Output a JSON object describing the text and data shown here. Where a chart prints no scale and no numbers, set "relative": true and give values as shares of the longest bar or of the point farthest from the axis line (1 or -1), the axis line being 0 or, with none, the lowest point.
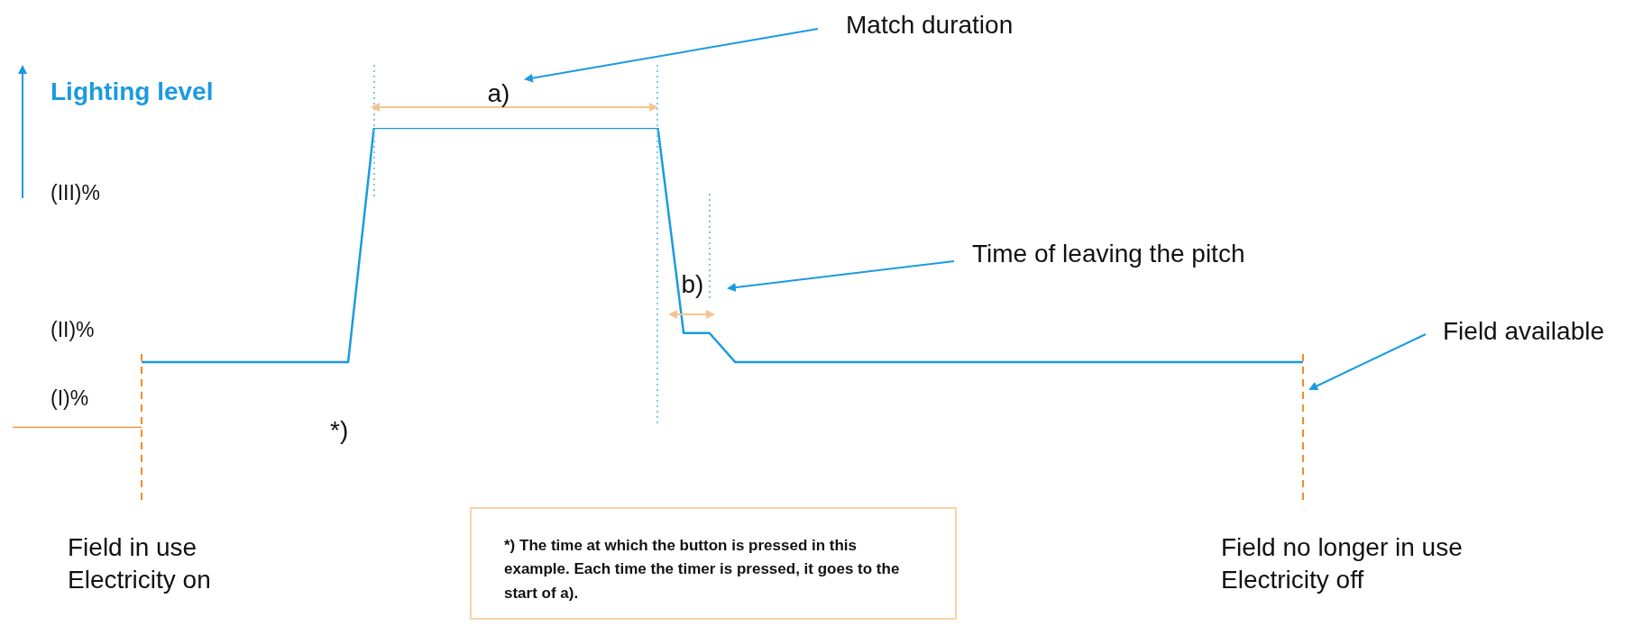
{
  "chart_data": {
    "type": "line",
    "relative": true,
    "ylabel": "Lighting level",
    "categories": [
      null,
      null,
      null,
      null,
      null,
      null,
      null,
      null,
      null,
      null,
      null,
      null,
      null,
      null,
      null,
      null,
      null,
      null,
      null,
      null,
      null,
      null,
      null,
      null,
      null,
      null,
      null,
      null,
      null,
      null,
      null,
      null,
      null,
      null,
      null,
      null,
      null,
      null,
      null,
      null,
      null,
      null,
      null,
      null,
      null,
      null,
      null,
      null,
      null,
      null,
      null
    ],
    "series": [
      {
        "color": "#f28c28",
        "values": [
          0,
          0,
          0,
          0,
          0,
          0,
          null,
          null,
          null,
          null,
          null,
          null,
          null,
          null,
          null,
          null,
          null,
          null,
          null,
          null,
          null,
          null,
          null,
          null,
          null,
          null,
          null,
          null,
          null,
          null,
          null,
          null,
          null,
          null,
          null,
          null,
          null,
          null,
          null,
          null,
          null,
          null,
          null,
          null,
          null,
          null,
          null,
          null,
          null,
          null,
          null
        ]
      },
      {
        "color": "#1a9be0",
        "values": [
          null,
          null,
          null,
          null,
          null,
          0.219,
          0.219,
          0.219,
          0.219,
          0.219,
          0.219,
          0.219,
          0.219,
          0.219,
          1,
          1,
          1,
          1,
          1,
          1,
          1,
          1,
          1,
          1,
          1,
          1,
          0.316,
          0.316,
          0.219,
          0.219,
          0.219,
          0.219,
          0.219,
          0.219,
          0.219,
          0.219,
          0.219,
          0.219,
          0.219,
          0.219,
          0.219,
          0.219,
          0.219,
          0.219,
          0.219,
          0.219,
          0.219,
          0.219,
          0.219,
          0.219,
          0.219
        ]
      }
    ],
    "annotations": [
      "Match duration",
      "a)",
      "Time of leaving the pitch",
      "b)",
      "Field available",
      "(III)%",
      "(II)%",
      "(I)%",
      "*)",
      "Field in use\nElectricity on",
      "Field no longer in use\nElectricity off",
      "*) The time at which the button is pressed in this example. Each time the timer is pressed, it goes to the start of a)."
    ],
    "legend": false
  }
}
